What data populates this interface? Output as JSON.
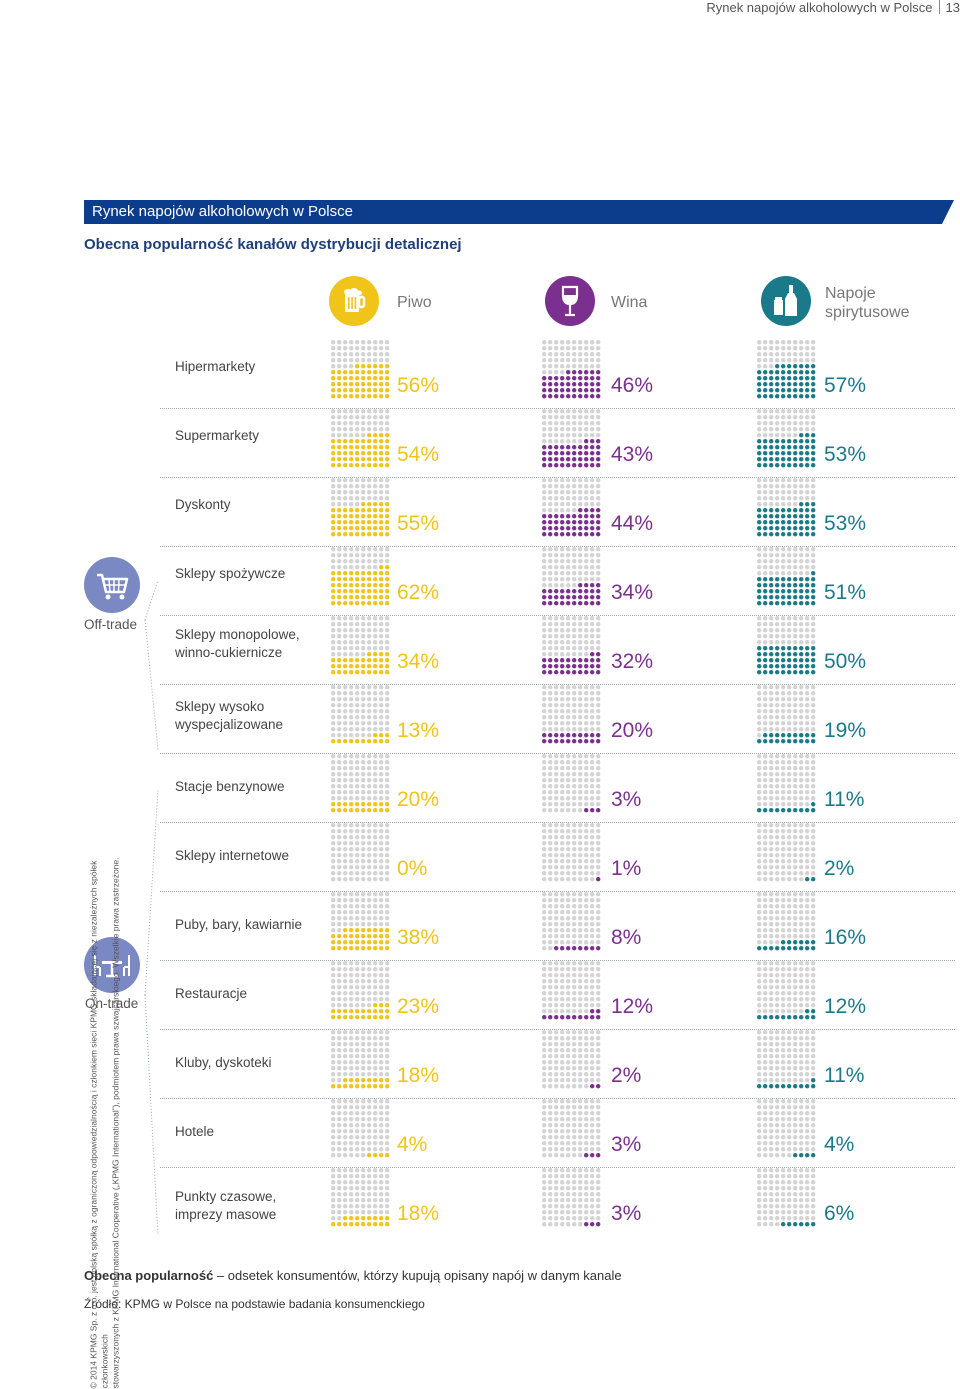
{
  "header": {
    "title": "Rynek napojów alkoholowych w Polsce",
    "page_number": "13"
  },
  "banner": {
    "title": "Rynek napojów alkoholowych w Polsce"
  },
  "subtitle": "Obecna popularność kanałów dystrybucji detalicznej",
  "beverages": [
    {
      "name": "Piwo",
      "color": "#f0c419",
      "icon": "beer-mug-icon"
    },
    {
      "name": "Wina",
      "color": "#7b2f8e",
      "icon": "wine-glass-icon"
    },
    {
      "name": "Napoje spirytusowe",
      "name_line1": "Napoje",
      "name_line2": "spirytusowe",
      "color": "#1a7a8a",
      "icon": "spirits-bottle-icon"
    }
  ],
  "groups": {
    "off_trade": {
      "label": "Off-trade",
      "icon": "shopping-cart-icon"
    },
    "on_trade": {
      "label": "On-trade",
      "icon": "table-chairs-icon"
    }
  },
  "rows": [
    {
      "line1": "Hipermarkety",
      "line2": ""
    },
    {
      "line1": "Supermarkety",
      "line2": ""
    },
    {
      "line1": "Dyskonty",
      "line2": ""
    },
    {
      "line1": "Sklepy spożywcze",
      "line2": ""
    },
    {
      "line1": "Sklepy monopolowe,",
      "line2": "winno-cukiernicze"
    },
    {
      "line1": "Sklepy wysoko",
      "line2": "wyspecjalizowane"
    },
    {
      "line1": "Stacje benzynowe",
      "line2": ""
    },
    {
      "line1": "Sklepy internetowe",
      "line2": ""
    },
    {
      "line1": "Puby, bary, kawiarnie",
      "line2": ""
    },
    {
      "line1": "Restauracje",
      "line2": ""
    },
    {
      "line1": "Kluby, dyskoteki",
      "line2": ""
    },
    {
      "line1": "Hotele",
      "line2": ""
    },
    {
      "line1": "Punkty czasowe,",
      "line2": "imprezy masowe"
    }
  ],
  "chart_data": {
    "type": "table",
    "title": "Obecna popularność kanałów dystrybucji detalicznej",
    "unit": "%",
    "categories": [
      "Hipermarkety",
      "Supermarkety",
      "Dyskonty",
      "Sklepy spożywcze",
      "Sklepy monopolowe, winno-cukiernicze",
      "Sklepy wysoko wyspecjalizowane",
      "Stacje benzynowe",
      "Sklepy internetowe",
      "Puby, bary, kawiarnie",
      "Restauracje",
      "Kluby, dyskoteki",
      "Hotele",
      "Punkty czasowe, imprezy masowe"
    ],
    "series": [
      {
        "name": "Piwo",
        "values": [
          56,
          54,
          55,
          62,
          34,
          13,
          20,
          0,
          38,
          23,
          18,
          4,
          18
        ]
      },
      {
        "name": "Wina",
        "values": [
          46,
          43,
          44,
          34,
          32,
          20,
          3,
          1,
          8,
          12,
          2,
          3,
          3
        ]
      },
      {
        "name": "Napoje spirytusowe",
        "values": [
          57,
          53,
          53,
          51,
          50,
          19,
          11,
          2,
          16,
          12,
          11,
          4,
          6
        ]
      }
    ]
  },
  "legend": {
    "bold": "Obecna popularność",
    "rest": " – odsetek konsumentów, którzy kupują opisany napój w danym kanale"
  },
  "source": "Źródło: KPMG w Polsce na podstawie badania konsumenckiego",
  "copyright": {
    "line1": "© 2014 KPMG Sp. z o.o. jest polską spółką z ograniczoną odpowiedzialnością i członkiem sieci KPMG składającej się z niezależnych spółek członkowskich",
    "line2": "stowarzyszonych z KPMG International Cooperative („KPMG International”), podmiotem prawa szwajcarskiego. Wszelkie prawa zastrzeżone."
  }
}
